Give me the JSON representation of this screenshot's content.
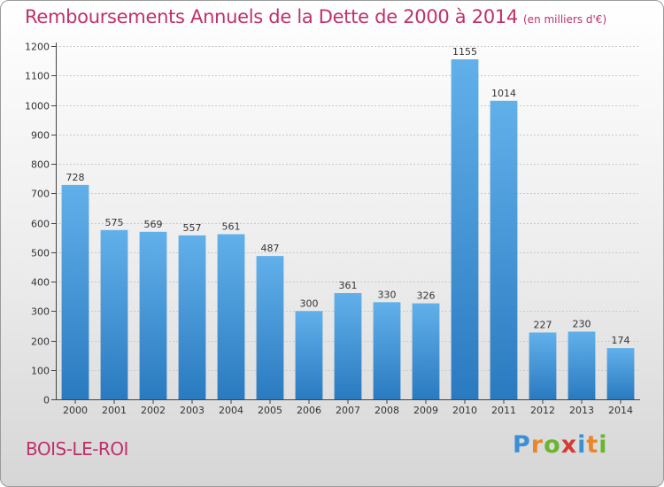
{
  "title": "Remboursements Annuels de la Dette de 2000 à 2014",
  "unit": "(en milliers d'€)",
  "town": "BOIS-LE-ROI",
  "logo": {
    "letters": [
      "P",
      "r",
      "o",
      "x",
      "i",
      "t",
      "i"
    ],
    "colors": [
      "#3a8fd6",
      "#e9862a",
      "#6ab52f",
      "#d63a36",
      "#3a8fd6",
      "#e9862a",
      "#6ab52f"
    ]
  },
  "chart_data": {
    "type": "bar",
    "categories": [
      "2000",
      "2001",
      "2002",
      "2003",
      "2004",
      "2005",
      "2006",
      "2007",
      "2008",
      "2009",
      "2010",
      "2011",
      "2012",
      "2013",
      "2014"
    ],
    "values": [
      728,
      575,
      569,
      557,
      561,
      487,
      300,
      361,
      330,
      326,
      1155,
      1014,
      227,
      230,
      174
    ],
    "value_labels": [
      "728",
      "575",
      "569",
      "557",
      "561",
      "487",
      "300",
      "361",
      "330",
      "326",
      "1155",
      "1014",
      "227",
      "230",
      "174"
    ],
    "yticks": [
      "0",
      "100",
      "200",
      "300",
      "400",
      "500",
      "600",
      "700",
      "800",
      "900",
      "1000",
      "1100",
      "1200"
    ],
    "ylim": [
      0,
      1200
    ],
    "grid": true,
    "colors": {
      "bar_light": "#62b0ea",
      "bar_dark": "#2a7ac0",
      "axis": "#444444"
    }
  }
}
